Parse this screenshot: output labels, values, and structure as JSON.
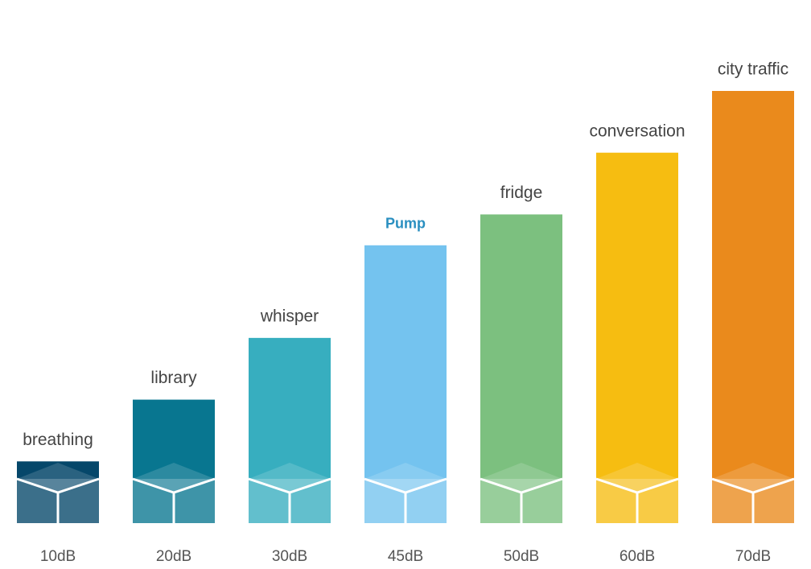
{
  "chart_data": {
    "type": "bar",
    "categories": [
      "breathing",
      "library",
      "whisper",
      "Pump",
      "fridge",
      "conversation",
      "city traffic"
    ],
    "values": [
      10,
      20,
      30,
      45,
      50,
      60,
      70
    ],
    "value_labels": [
      "10dB",
      "20dB",
      "30dB",
      "45dB",
      "50dB",
      "60dB",
      "70dB"
    ],
    "colors": [
      "#05476a",
      "#087690",
      "#37aebf",
      "#74c3ef",
      "#7cc07f",
      "#f6bd11",
      "#ea8a1c"
    ],
    "label_colors": [
      "#444444",
      "#444444",
      "#444444",
      "#2a8fc0",
      "#444444",
      "#444444",
      "#444444"
    ]
  }
}
